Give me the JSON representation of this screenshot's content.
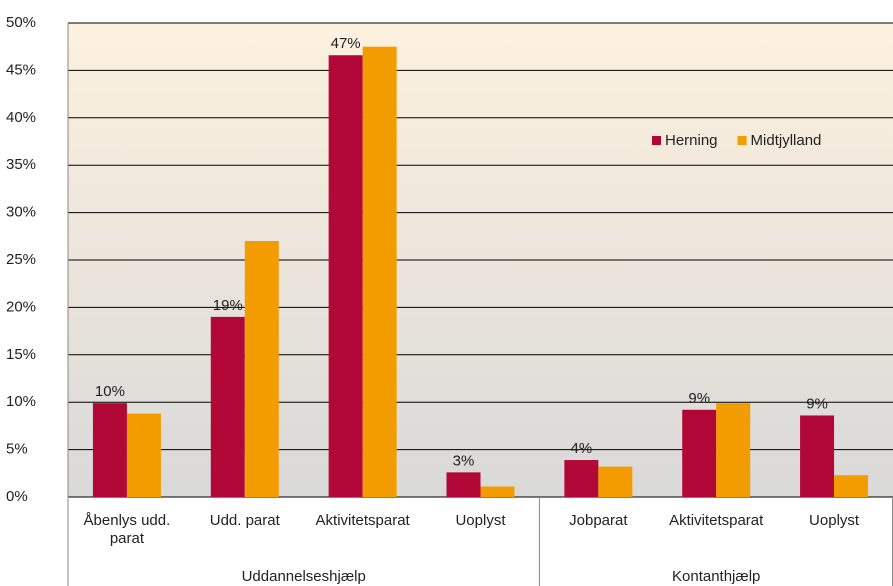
{
  "chart_data": {
    "type": "bar",
    "groups": [
      {
        "label": "Uddannelseshjælp",
        "categories": [
          "Åbenlys udd. parat",
          "Udd. parat",
          "Aktivitetsparat",
          "Uoplyst"
        ]
      },
      {
        "label": "Kontanthjælp",
        "categories": [
          "Jobparat",
          "Aktivitetsparat",
          "Uoplyst"
        ]
      }
    ],
    "series": [
      {
        "name": "Herning",
        "color": "#b20838",
        "values": [
          9.9,
          19.0,
          46.6,
          2.6,
          3.9,
          9.2,
          8.6
        ],
        "value_labels": [
          "10%",
          "19%",
          "47%",
          "3%",
          "4%",
          "9%",
          "9%"
        ]
      },
      {
        "name": "Midtjylland",
        "color": "#f39c00",
        "values": [
          8.8,
          27.0,
          47.5,
          1.1,
          3.2,
          9.9,
          2.3
        ]
      }
    ],
    "ylim": [
      0,
      50
    ],
    "yticks": [
      {
        "value": 0,
        "label": "0%"
      },
      {
        "value": 5,
        "label": "5%"
      },
      {
        "value": 10,
        "label": "10%"
      },
      {
        "value": 15,
        "label": "15%"
      },
      {
        "value": 20,
        "label": "20%"
      },
      {
        "value": 25,
        "label": "25%"
      },
      {
        "value": 30,
        "label": "30%"
      },
      {
        "value": 35,
        "label": "35%"
      },
      {
        "value": 40,
        "label": "40%"
      },
      {
        "value": 45,
        "label": "45%"
      },
      {
        "value": 50,
        "label": "50%"
      }
    ],
    "grid": true,
    "legend": "right"
  }
}
